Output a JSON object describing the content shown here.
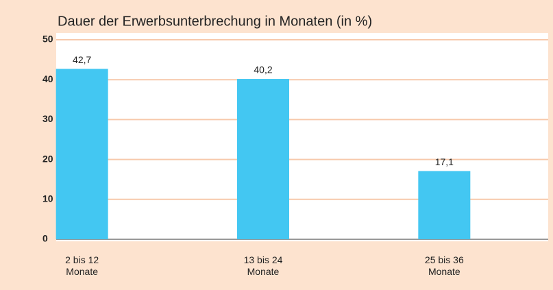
{
  "chart_data": {
    "type": "bar",
    "title": "Dauer der Erwerbsunterbrechung in Monaten (in %)",
    "categories": [
      "2 bis 12\nMonate",
      "13 bis 24\nMonate",
      "25 bis 36\nMonate"
    ],
    "values": [
      42.7,
      40.2,
      17.1
    ],
    "value_labels": [
      "42,7",
      "40,2",
      "17,1"
    ],
    "color": "#43c7f2",
    "ylim": [
      0,
      50
    ],
    "yticks": [
      0,
      10,
      20,
      30,
      40,
      50
    ],
    "grid": true
  }
}
